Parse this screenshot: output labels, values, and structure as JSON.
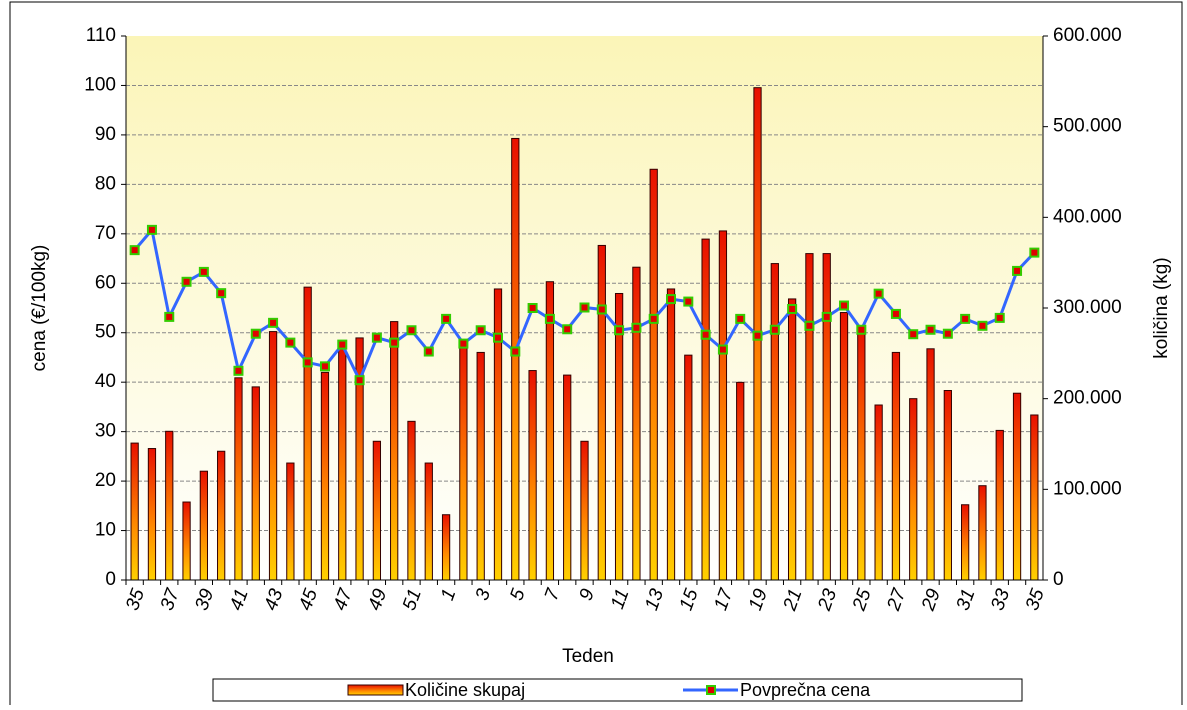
{
  "chart_data": {
    "type": "bar",
    "xlabel": "Teden",
    "ylabel": "cena (€/100kg)",
    "y2label": "količina (kg)",
    "categories": [
      "35",
      null,
      "37",
      null,
      "39",
      null,
      "41",
      null,
      "43",
      null,
      "45",
      null,
      "47",
      null,
      "49",
      null,
      "51",
      null,
      "1",
      null,
      "3",
      null,
      "5",
      null,
      "7",
      null,
      "9",
      null,
      "11",
      null,
      "13",
      null,
      "15",
      null,
      "17",
      null,
      "19",
      null,
      "21",
      null,
      "23",
      null,
      "25",
      null,
      "27",
      null,
      "29",
      null,
      "31",
      null,
      "33",
      null,
      "35"
    ],
    "ylim": [
      0,
      110
    ],
    "yticks": [
      0,
      10,
      20,
      30,
      40,
      50,
      60,
      70,
      80,
      90,
      100,
      110
    ],
    "y2lim": [
      0,
      600000
    ],
    "y2ticks": [
      0,
      {
        "value": 100000,
        "label": "100.000"
      },
      {
        "value": 200000,
        "label": "200.000"
      },
      {
        "value": 300000,
        "label": "300.000"
      },
      {
        "value": 400000,
        "label": "400.000"
      },
      {
        "value": 500000,
        "label": "500.000"
      },
      {
        "value": 600000,
        "label": "600.000"
      }
    ],
    "grid": true,
    "legend": "bottom",
    "series": [
      {
        "name": "Količine skupaj",
        "type": "bar",
        "axis": "y2",
        "color": "#e82000",
        "values": [
          151000,
          145000,
          164000,
          86000,
          120000,
          142000,
          223000,
          213000,
          274000,
          129000,
          323000,
          229000,
          256000,
          267000,
          153000,
          285000,
          175000,
          129000,
          72000,
          265000,
          251000,
          321000,
          487000,
          231000,
          329000,
          226000,
          153000,
          369000,
          316000,
          345000,
          453000,
          321000,
          248000,
          376000,
          385000,
          218000,
          543000,
          349000,
          310000,
          360000,
          360000,
          295000,
          275000,
          193000,
          251000,
          200000,
          255000,
          209000,
          83000,
          104000,
          165000,
          206000,
          182000
        ]
      },
      {
        "name": "Povprečna cena",
        "type": "line",
        "color": "#3366ff",
        "values": [
          66.7,
          70.8,
          53.2,
          60.3,
          62.3,
          58,
          42.3,
          49.8,
          52,
          48,
          44,
          43.2,
          47.6,
          40.4,
          49,
          48,
          50.5,
          46.2,
          52.8,
          47.8,
          50.5,
          49,
          46.2,
          55,
          52.8,
          50.7,
          55.1,
          54.7,
          50.5,
          51,
          52.8,
          56.8,
          56.3,
          49.6,
          46.6,
          52.8,
          49.4,
          50.6,
          54.8,
          51.4,
          53.2,
          55.5,
          50.6,
          57.9,
          53.8,
          49.7,
          50.6,
          49.8,
          52.8,
          51.4,
          53,
          62.5,
          66.2
        ]
      }
    ]
  }
}
